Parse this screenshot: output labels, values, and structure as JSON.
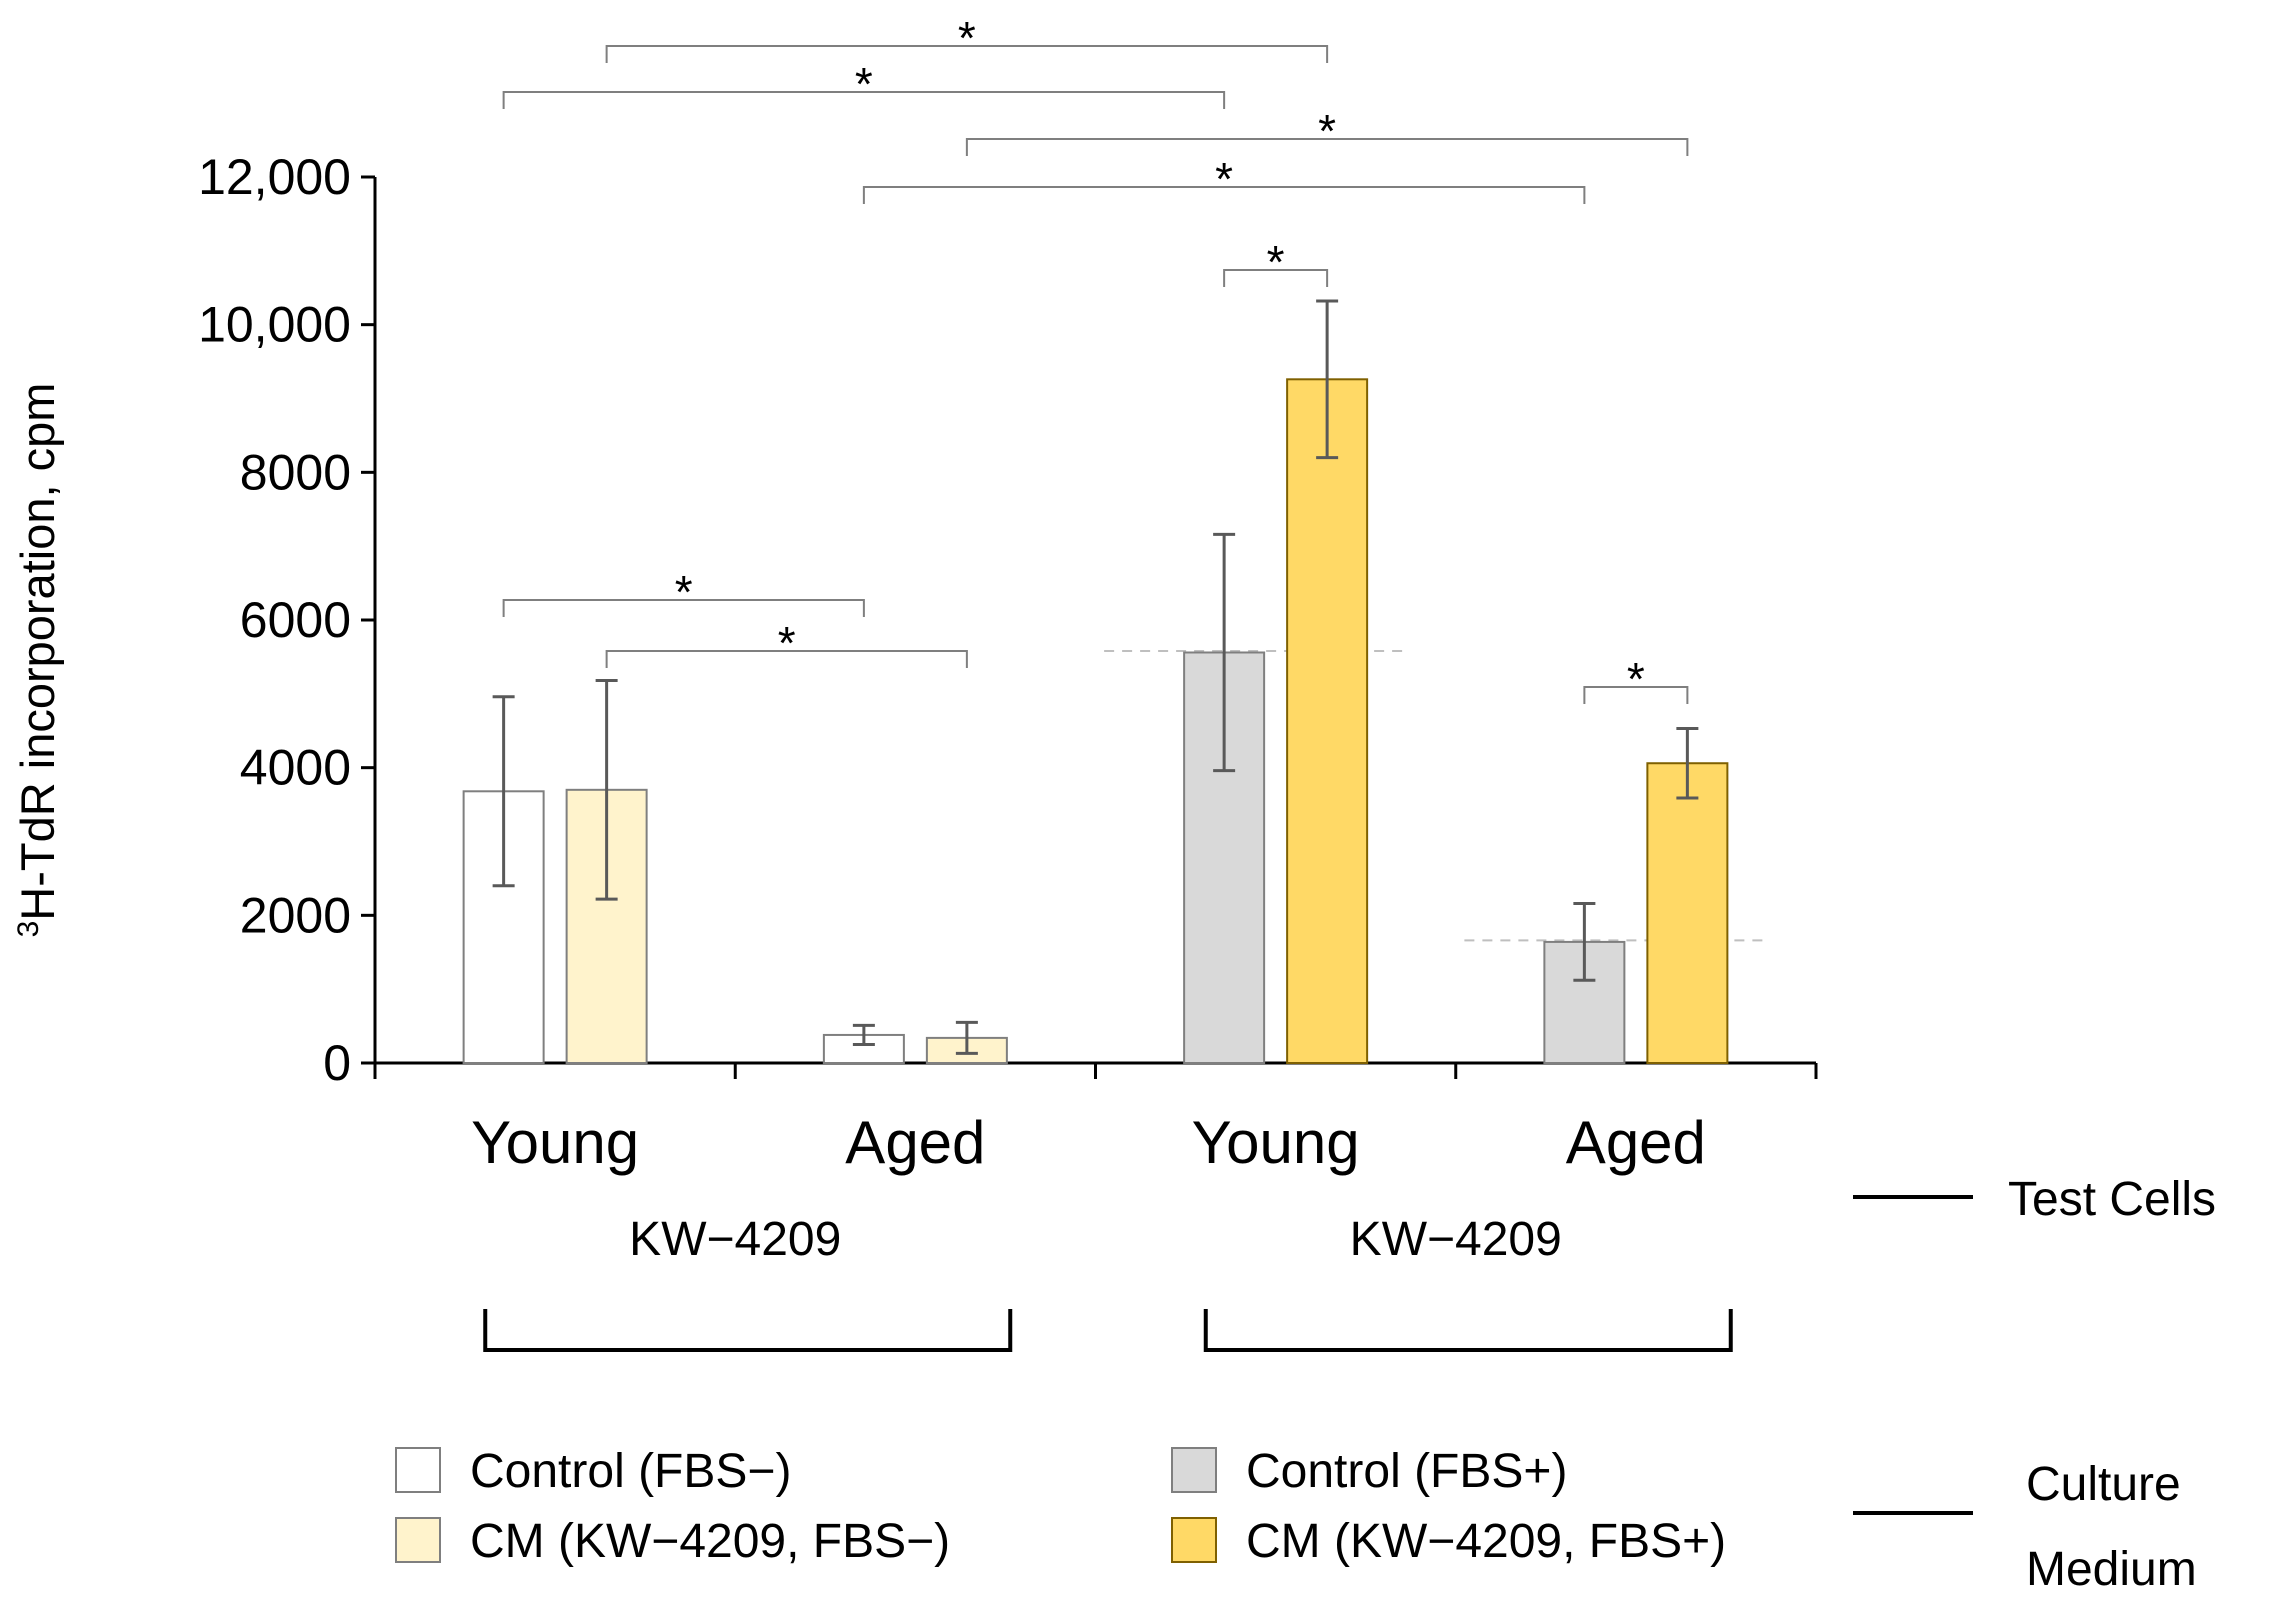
{
  "chart_data": {
    "type": "bar",
    "ylabel_sup": "3",
    "ylabel_main": "H-TdR incorporation, cpm",
    "ylim": [
      0,
      12000
    ],
    "yticks": [
      {
        "value": 0,
        "label": "0"
      },
      {
        "value": 2000,
        "label": "2000"
      },
      {
        "value": 4000,
        "label": "4000"
      },
      {
        "value": 6000,
        "label": "6000"
      },
      {
        "value": 8000,
        "label": "8000"
      },
      {
        "value": 10000,
        "label": "10,000"
      },
      {
        "value": 12000,
        "label": "12,000"
      }
    ],
    "categories": [
      "Young",
      "Aged",
      "Young",
      "Aged"
    ],
    "series": [
      {
        "name": "Control (FBS−)",
        "color": "#ffffff",
        "values": [
          3680,
          380,
          null,
          null
        ],
        "errors": [
          1280,
          130,
          null,
          null
        ]
      },
      {
        "name": "CM (KW−4209, FBS−)",
        "color": "#fff3cc",
        "values": [
          3700,
          340,
          null,
          null
        ],
        "errors": [
          1480,
          210,
          null,
          null
        ]
      },
      {
        "name": "Control (FBS+)",
        "color": "#d9d9d9",
        "values": [
          null,
          null,
          5560,
          1640
        ],
        "errors": [
          null,
          null,
          1600,
          520
        ]
      },
      {
        "name": "CM (KW−4209, FBS+)",
        "color": "#ffd966",
        "values": [
          null,
          null,
          9260,
          4060
        ],
        "errors": [
          null,
          null,
          1060,
          470
        ]
      }
    ],
    "baselines": [
      5580,
      1660
    ],
    "groups": [
      "KW−4209",
      "KW−4209"
    ],
    "significance_marker": "*",
    "significance_pairs": [
      {
        "from": [
          0,
          1
        ],
        "to": [
          2,
          3
        ]
      },
      {
        "from": [
          0,
          0
        ],
        "to": [
          2,
          2
        ]
      },
      {
        "from": [
          1,
          1
        ],
        "to": [
          3,
          3
        ]
      },
      {
        "from": [
          1,
          0
        ],
        "to": [
          3,
          2
        ]
      },
      {
        "from": [
          2,
          2
        ],
        "to": [
          2,
          3
        ]
      },
      {
        "from": [
          0,
          0
        ],
        "to": [
          1,
          0
        ]
      },
      {
        "from": [
          0,
          1
        ],
        "to": [
          1,
          1
        ]
      },
      {
        "from": [
          3,
          2
        ],
        "to": [
          3,
          3
        ]
      }
    ],
    "side_labels": {
      "test_cells": "Test Cells",
      "culture_line1": "Culture",
      "culture_line2": "Medium"
    }
  }
}
